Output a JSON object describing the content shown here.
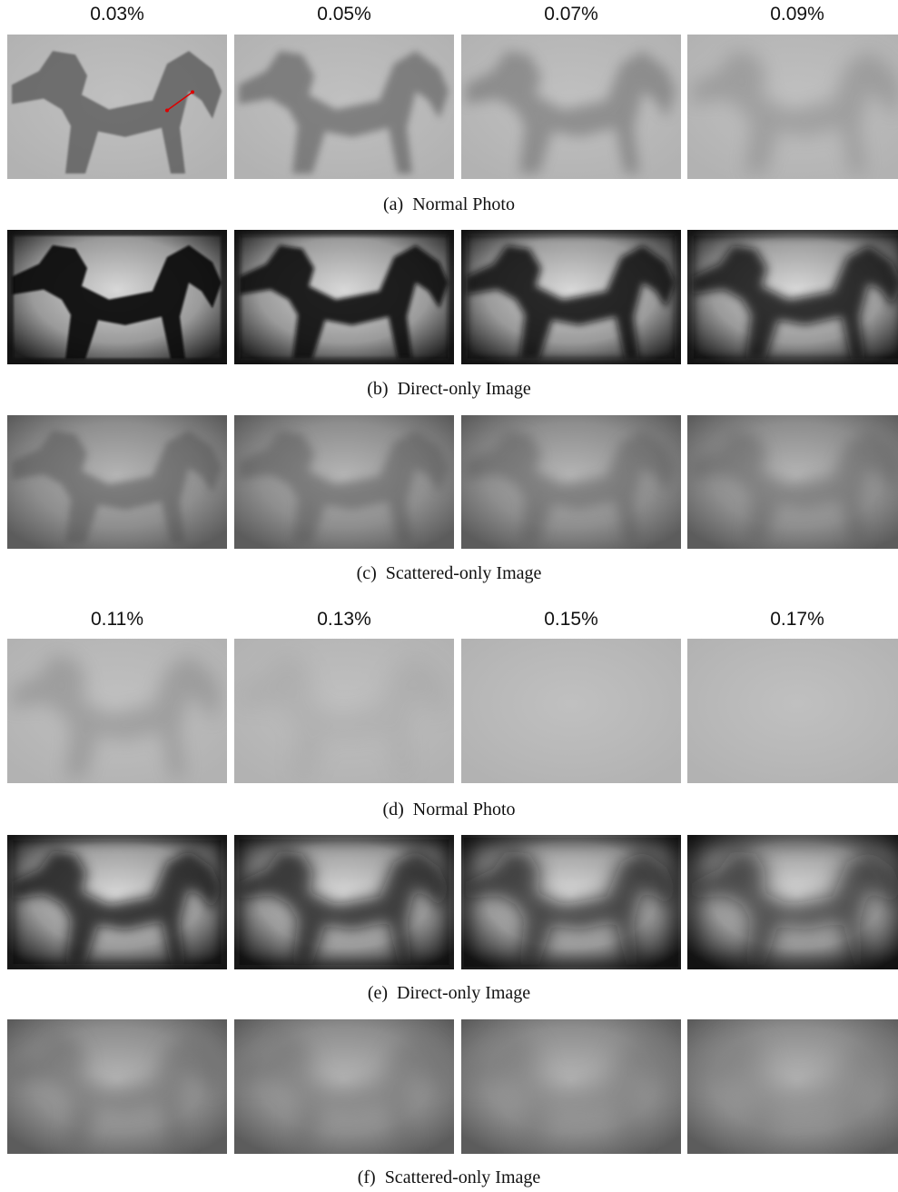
{
  "blocks": [
    {
      "headers": [
        "0.03%",
        "0.05%",
        "0.07%",
        "0.09%"
      ],
      "rows": [
        {
          "label": "(a)",
          "text": "Normal Photo"
        },
        {
          "label": "(b)",
          "text": "Direct-only Image"
        },
        {
          "label": "(c)",
          "text": "Scattered-only Image"
        }
      ]
    },
    {
      "headers": [
        "0.11%",
        "0.13%",
        "0.15%",
        "0.17%"
      ],
      "rows": [
        {
          "label": "(d)",
          "text": "Normal Photo"
        },
        {
          "label": "(e)",
          "text": "Direct-only Image"
        },
        {
          "label": "(f)",
          "text": "Scattered-only Image"
        }
      ]
    }
  ]
}
